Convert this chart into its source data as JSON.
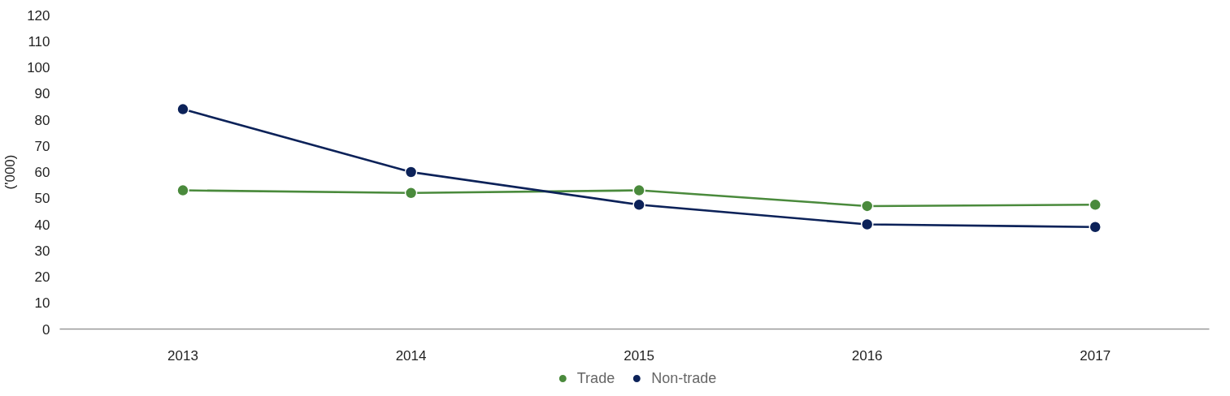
{
  "chart_data": {
    "type": "line",
    "ylabel": "('000)",
    "categories": [
      "2013",
      "2014",
      "2015",
      "2016",
      "2017"
    ],
    "series": [
      {
        "name": "Trade",
        "color": "#4a8a3c",
        "values": [
          53,
          52,
          53,
          47,
          47.5
        ]
      },
      {
        "name": "Non-trade",
        "color": "#0c2259",
        "values": [
          84,
          60,
          47.5,
          40,
          39
        ]
      }
    ],
    "ylim": [
      0,
      120
    ],
    "yticks": [
      0,
      10,
      20,
      30,
      40,
      50,
      60,
      70,
      80,
      90,
      100,
      110,
      120
    ],
    "grid": false,
    "legend": "bottom",
    "marker": "circle",
    "line_style": "solid"
  }
}
